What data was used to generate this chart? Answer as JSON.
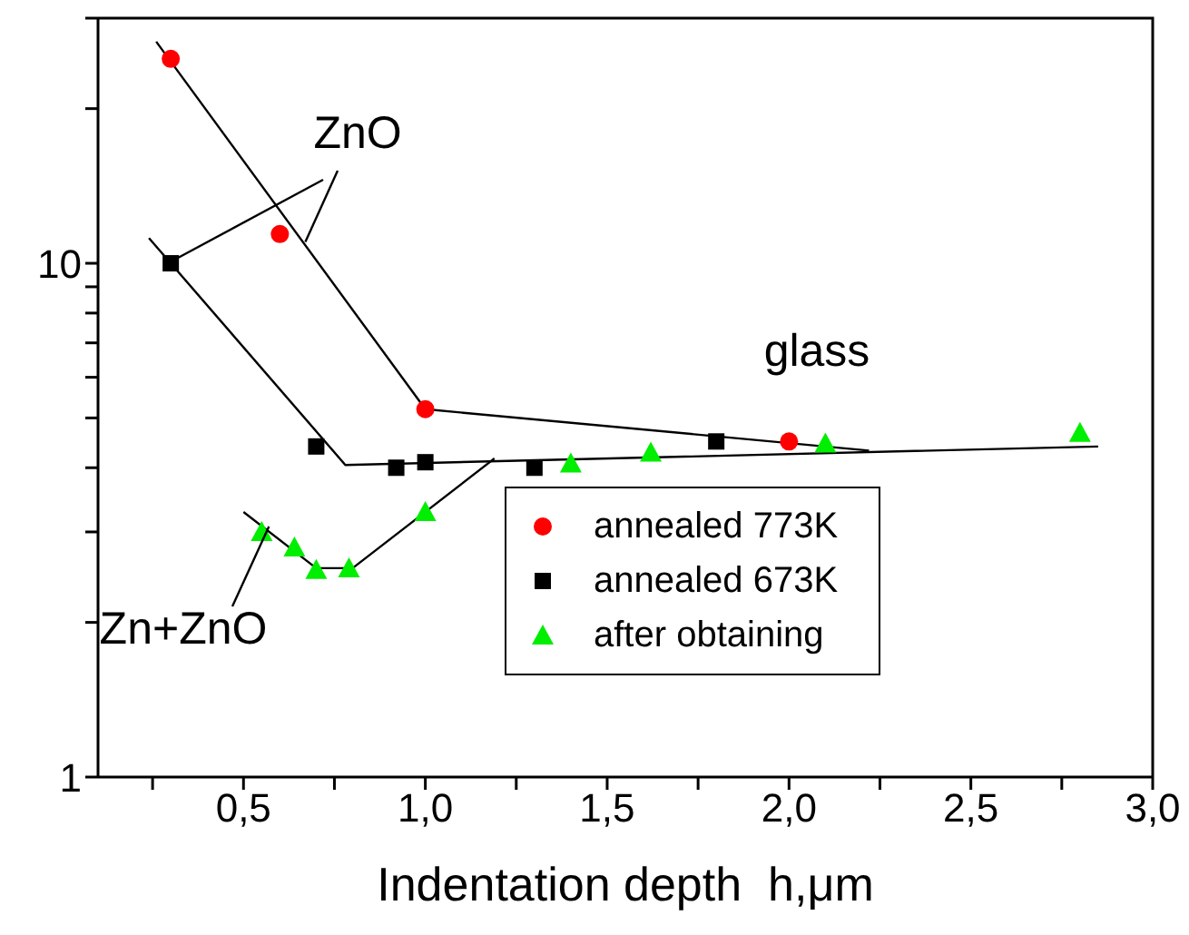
{
  "chart_data": {
    "type": "scatter",
    "xlabel": "Indentation depth  h,μm",
    "log": "y",
    "xlim": [
      0.1,
      3.0
    ],
    "xticks": [
      {
        "value": 0.25,
        "label": null
      },
      {
        "value": 0.5,
        "label": "0,5"
      },
      {
        "value": 0.75,
        "label": null
      },
      {
        "value": 1.0,
        "label": "1,0"
      },
      {
        "value": 1.25,
        "label": null
      },
      {
        "value": 1.5,
        "label": "1,5"
      },
      {
        "value": 1.75,
        "label": null
      },
      {
        "value": 2.0,
        "label": "2,0"
      },
      {
        "value": 2.25,
        "label": null
      },
      {
        "value": 2.5,
        "label": "2,5"
      },
      {
        "value": 2.75,
        "label": null
      },
      {
        "value": 3.0,
        "label": "3,0"
      }
    ],
    "ylim": [
      1,
      30
    ],
    "yticks": [
      1,
      {
        "value": 2,
        "label": null
      },
      {
        "value": 3,
        "label": null
      },
      {
        "value": 4,
        "label": null
      },
      {
        "value": 5,
        "label": null
      },
      {
        "value": 6,
        "label": null
      },
      {
        "value": 7,
        "label": null
      },
      {
        "value": 8,
        "label": null
      },
      {
        "value": 9,
        "label": null
      },
      10,
      {
        "value": 20,
        "label": null
      },
      {
        "value": 30,
        "label": null
      }
    ],
    "legend": "bottom right",
    "series": [
      {
        "name": "annealed 773K",
        "marker": "circle",
        "color": "#ff0000",
        "x": [
          0.3,
          0.6,
          1.0,
          2.0
        ],
        "values": [
          25,
          11.4,
          5.2,
          4.5
        ]
      },
      {
        "name": "annealed 673K",
        "marker": "square",
        "color": "#000000",
        "x": [
          0.3,
          0.7,
          0.92,
          1.0,
          1.3,
          1.8
        ],
        "values": [
          10,
          4.4,
          4.0,
          4.1,
          4.0,
          4.5
        ]
      },
      {
        "name": "after obtaining",
        "marker": "triangle",
        "color": "#00ee00",
        "x": [
          0.55,
          0.64,
          0.7,
          0.79,
          1.0,
          1.4,
          1.62,
          2.1,
          2.8
        ],
        "values": [
          3.0,
          2.8,
          2.53,
          2.55,
          3.28,
          4.08,
          4.28,
          4.46,
          4.68
        ]
      },
      {
        "type": "line",
        "color": "#000000",
        "x": [
          0.26,
          1.0,
          2.22
        ],
        "values": [
          27,
          5.2,
          4.32
        ]
      },
      {
        "type": "line",
        "color": "#000000",
        "x": [
          0.24,
          0.78,
          2.85
        ],
        "values": [
          11.2,
          4.05,
          4.4
        ]
      },
      {
        "type": "line",
        "color": "#000000",
        "x": [
          0.5,
          0.7,
          0.8,
          1.19
        ],
        "values": [
          3.28,
          2.55,
          2.55,
          4.17
        ]
      }
    ],
    "annotations": [
      {
        "text": "ZnO",
        "x": 0.3,
        "y": 10
      },
      "glass",
      {
        "text": "Zn+ZnO",
        "x": 0.55,
        "y": 3.0
      }
    ]
  }
}
